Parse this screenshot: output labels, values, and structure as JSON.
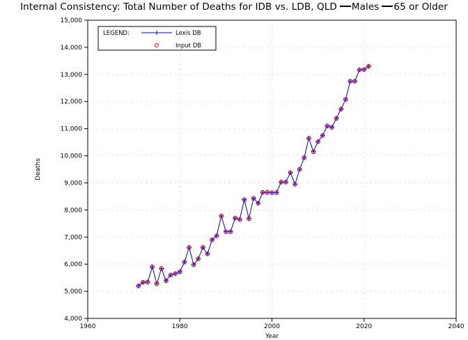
{
  "title": {
    "main": "Internal Consistency: Total Number of Deaths for IDB vs. LDB, QLD",
    "sex": "Males",
    "age": "65 or Older"
  },
  "chart_data": {
    "type": "line",
    "xlabel": "Year",
    "ylabel": "Deaths",
    "xlim": [
      1960,
      2040
    ],
    "ylim": [
      4000,
      15000
    ],
    "x_ticks": [
      1960,
      1980,
      2000,
      2020,
      2040
    ],
    "y_ticks": [
      4000,
      5000,
      6000,
      7000,
      8000,
      9000,
      10000,
      11000,
      12000,
      13000,
      14000,
      15000
    ],
    "x_tick_labels": [
      "1960",
      "1980",
      "2000",
      "2020",
      "2040"
    ],
    "y_tick_labels": [
      "4,000",
      "5,000",
      "6,000",
      "7,000",
      "8,000",
      "9,000",
      "10,000",
      "11,000",
      "12,000",
      "13,000",
      "14,000",
      "15,000"
    ],
    "grid": true,
    "legend": {
      "title": "LEGEND:",
      "placement": "top-left",
      "entries": [
        "Lexis DB",
        "Input DB"
      ]
    },
    "x": [
      1971,
      1972,
      1973,
      1974,
      1975,
      1976,
      1977,
      1978,
      1979,
      1980,
      1981,
      1982,
      1983,
      1984,
      1985,
      1986,
      1987,
      1988,
      1989,
      1990,
      1991,
      1992,
      1993,
      1994,
      1995,
      1996,
      1997,
      1998,
      1999,
      2000,
      2001,
      2002,
      2003,
      2004,
      2005,
      2006,
      2007,
      2008,
      2009,
      2010,
      2011,
      2012,
      2013,
      2014,
      2015,
      2016,
      2017,
      2018,
      2019,
      2020,
      2021
    ],
    "series": [
      {
        "name": "Lexis DB",
        "color": "#0000cc",
        "marker": "plus",
        "values": [
          5200,
          5330,
          5340,
          5900,
          5280,
          5840,
          5390,
          5600,
          5650,
          5720,
          6080,
          6620,
          5980,
          6200,
          6620,
          6380,
          6900,
          7050,
          7780,
          7200,
          7200,
          7700,
          7650,
          8380,
          7680,
          8430,
          8250,
          8650,
          8650,
          8640,
          8640,
          9030,
          9030,
          9380,
          8950,
          9500,
          9930,
          10650,
          10150,
          10520,
          10750,
          11100,
          11050,
          11380,
          11720,
          12080,
          12750,
          12750,
          13170,
          13180,
          13300
        ]
      },
      {
        "name": "Input DB",
        "color": "#ff0000",
        "marker": "circle",
        "values": [
          5200,
          5330,
          5340,
          5900,
          5280,
          5840,
          5390,
          5600,
          5650,
          5720,
          6080,
          6620,
          5980,
          6200,
          6620,
          6380,
          6900,
          7050,
          7780,
          7200,
          7200,
          7700,
          7650,
          8380,
          7680,
          8430,
          8250,
          8650,
          8650,
          8640,
          8640,
          9030,
          9030,
          9380,
          8950,
          9500,
          9930,
          10650,
          10150,
          10520,
          10750,
          11100,
          11050,
          11380,
          11720,
          12080,
          12750,
          12750,
          13170,
          13180,
          13300
        ]
      }
    ]
  }
}
